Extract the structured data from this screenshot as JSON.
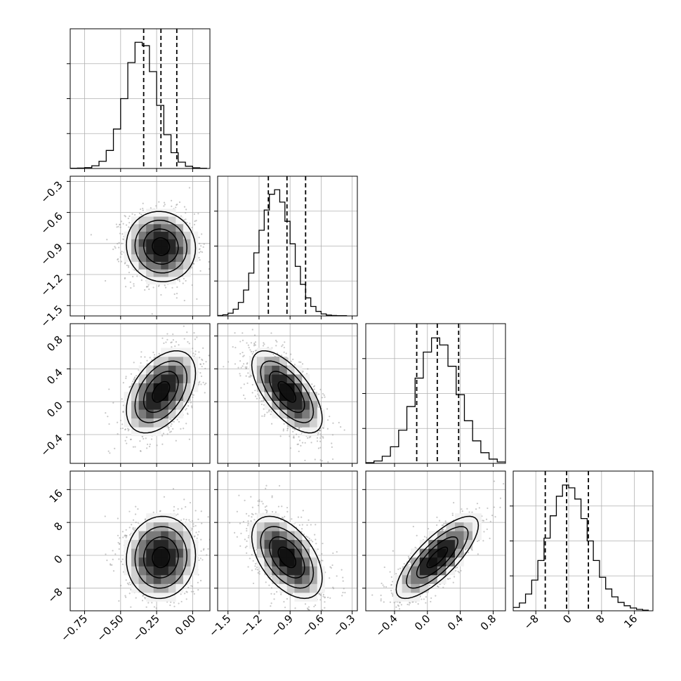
{
  "colors": {
    "background": "#ffffff",
    "line": "#000000",
    "grid": "#b0b0b0",
    "scatter": "#9a9a9a",
    "density_levels": [
      "#f2f2f2",
      "#d0d0d0",
      "#a8a8a8",
      "#7a7a7a",
      "#4d4d4d",
      "#262626",
      "#111111"
    ]
  },
  "chart_data": {
    "type": "corner",
    "description_of_layout": "lower-triangle corner plot",
    "grid": true,
    "parameters": [
      {
        "index": 0,
        "range": [
          -0.85,
          0.12
        ],
        "mean": -0.22,
        "std": 0.12,
        "quantiles": [
          -0.34,
          -0.22,
          -0.11
        ],
        "ticks": [
          -0.75,
          -0.5,
          -0.25,
          0.0
        ],
        "tick_labels": [
          "−0.75",
          "−0.50",
          "−0.25",
          "0.00"
        ]
      },
      {
        "index": 1,
        "range": [
          -1.6,
          -0.25
        ],
        "mean": -0.93,
        "std": 0.17,
        "quantiles": [
          -1.11,
          -0.93,
          -0.75
        ],
        "ticks": [
          -1.5,
          -1.2,
          -0.9,
          -0.6,
          -0.3
        ],
        "tick_labels": [
          "−1.5",
          "−1.2",
          "−0.9",
          "−0.6",
          "−0.3"
        ]
      },
      {
        "index": 2,
        "range": [
          -0.75,
          0.95
        ],
        "mean": 0.12,
        "std": 0.25,
        "quantiles": [
          -0.13,
          0.12,
          0.38
        ],
        "ticks": [
          -0.4,
          0.0,
          0.4,
          0.8
        ],
        "tick_labels": [
          "−0.4",
          "0.0",
          "0.4",
          "0.8"
        ]
      },
      {
        "index": 3,
        "range": [
          -13.5,
          20.5
        ],
        "mean": -0.5,
        "std": 5.0,
        "quantiles": [
          -5.7,
          -0.5,
          4.8
        ],
        "ticks": [
          -8,
          0,
          8,
          16
        ],
        "tick_labels": [
          "−8",
          "0",
          "8",
          "16"
        ]
      }
    ],
    "correlations": {
      "1,0": -0.05,
      "2,0": 0.45,
      "2,1": -0.65,
      "3,0": 0.05,
      "3,1": -0.5,
      "3,2": 0.78
    },
    "histograms": [
      {
        "param": 0,
        "bin_edges": [
          -0.85,
          -0.8,
          -0.75,
          -0.7,
          -0.65,
          -0.6,
          -0.55,
          -0.5,
          -0.45,
          -0.4,
          -0.35,
          -0.3,
          -0.25,
          -0.2,
          -0.15,
          -0.1,
          -0.05,
          0.0,
          0.05,
          0.1
        ],
        "counts": [
          1,
          2,
          4,
          12,
          32,
          80,
          175,
          310,
          470,
          560,
          545,
          430,
          280,
          150,
          70,
          28,
          10,
          3,
          1
        ],
        "ylim": [
          0,
          620
        ]
      },
      {
        "param": 1,
        "bin_edges": [
          -1.6,
          -1.55,
          -1.5,
          -1.45,
          -1.4,
          -1.35,
          -1.3,
          -1.25,
          -1.2,
          -1.15,
          -1.1,
          -1.05,
          -1.0,
          -0.95,
          -0.9,
          -0.85,
          -0.8,
          -0.75,
          -0.7,
          -0.65,
          -0.6,
          -0.55,
          -0.5,
          -0.45,
          -0.4,
          -0.35
        ],
        "counts": [
          2,
          5,
          12,
          30,
          60,
          115,
          190,
          280,
          380,
          470,
          540,
          560,
          505,
          420,
          320,
          220,
          140,
          80,
          42,
          20,
          9,
          4,
          2,
          1,
          1
        ],
        "ylim": [
          0,
          620
        ]
      },
      {
        "param": 2,
        "bin_edges": [
          -0.75,
          -0.65,
          -0.55,
          -0.45,
          -0.35,
          -0.25,
          -0.15,
          -0.05,
          0.05,
          0.15,
          0.25,
          0.35,
          0.45,
          0.55,
          0.65,
          0.75,
          0.85,
          0.95
        ],
        "counts": [
          3,
          10,
          30,
          70,
          140,
          240,
          360,
          470,
          530,
          500,
          410,
          290,
          180,
          95,
          45,
          18,
          6
        ],
        "ylim": [
          0,
          590
        ]
      },
      {
        "param": 3,
        "bin_edges": [
          -13.5,
          -12,
          -10.5,
          -9,
          -7.5,
          -6,
          -4.5,
          -3,
          -1.5,
          0,
          1.5,
          3,
          4.5,
          6,
          7.5,
          9,
          10.5,
          12,
          13.5,
          15,
          16.5,
          18,
          19.5
        ],
        "counts": [
          12,
          28,
          60,
          110,
          180,
          260,
          340,
          410,
          450,
          440,
          400,
          330,
          250,
          180,
          120,
          78,
          50,
          30,
          18,
          10,
          5,
          2
        ],
        "ylim": [
          0,
          500
        ]
      }
    ]
  }
}
